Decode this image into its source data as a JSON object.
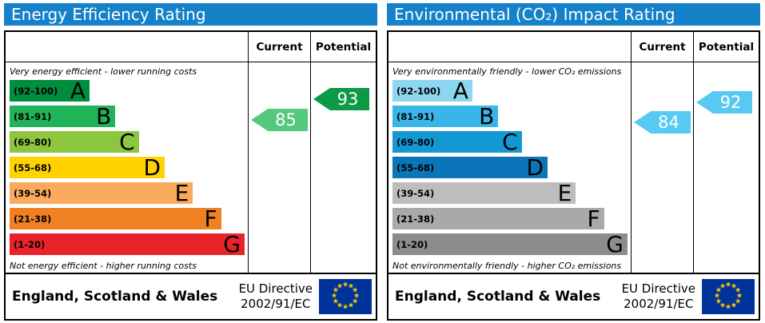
{
  "colors": {
    "header_bg": "#1581c8",
    "header_text": "#ffffff",
    "border": "#000000",
    "flag_bg": "#003399",
    "flag_star": "#ffcc00"
  },
  "icons": {
    "eu_star": "★"
  },
  "panels": [
    {
      "title": "Energy Efficiency Rating",
      "col_current": "Current",
      "col_potential": "Potential",
      "top_note": "Very energy efficient - lower running costs",
      "bottom_note": "Not energy efficient - higher running costs",
      "bands": [
        {
          "range": "(92-100)",
          "letter": "A",
          "color": "#008d3e",
          "width": "34%"
        },
        {
          "range": "(81-91)",
          "letter": "B",
          "color": "#21b358",
          "width": "45%"
        },
        {
          "range": "(69-80)",
          "letter": "C",
          "color": "#8cc63f",
          "width": "55%"
        },
        {
          "range": "(55-68)",
          "letter": "D",
          "color": "#ffd200",
          "width": "66%"
        },
        {
          "range": "(39-54)",
          "letter": "E",
          "color": "#fbaa5d",
          "width": "78%"
        },
        {
          "range": "(21-38)",
          "letter": "F",
          "color": "#f08023",
          "width": "90%"
        },
        {
          "range": "(1-20)",
          "letter": "G",
          "color": "#ea232b",
          "width": "100%"
        }
      ],
      "current": {
        "value": "85",
        "color": "#54c87c"
      },
      "potential": {
        "value": "93",
        "color": "#0d9a46"
      },
      "footer_region": "England, Scotland & Wales",
      "directive_line1": "EU Directive",
      "directive_line2": "2002/91/EC"
    },
    {
      "title": "Environmental (CO₂) Impact Rating",
      "col_current": "Current",
      "col_potential": "Potential",
      "top_note": "Very environmentally friendly - lower CO₂ emissions",
      "bottom_note": "Not environmentally friendly - higher CO₂ emissions",
      "bands": [
        {
          "range": "(92-100)",
          "letter": "A",
          "color": "#8dd6f0",
          "width": "34%"
        },
        {
          "range": "(81-91)",
          "letter": "B",
          "color": "#38b6e8",
          "width": "45%"
        },
        {
          "range": "(69-80)",
          "letter": "C",
          "color": "#1498d4",
          "width": "55%"
        },
        {
          "range": "(55-68)",
          "letter": "D",
          "color": "#0a75b8",
          "width": "66%"
        },
        {
          "range": "(39-54)",
          "letter": "E",
          "color": "#bdbdbd",
          "width": "78%"
        },
        {
          "range": "(21-38)",
          "letter": "F",
          "color": "#a9a9a9",
          "width": "90%"
        },
        {
          "range": "(1-20)",
          "letter": "G",
          "color": "#8c8c8c",
          "width": "100%"
        }
      ],
      "current": {
        "value": "84",
        "color": "#58c9f3"
      },
      "potential": {
        "value": "92",
        "color": "#58c9f3"
      },
      "footer_region": "England, Scotland & Wales",
      "directive_line1": "EU Directive",
      "directive_line2": "2002/91/EC"
    }
  ],
  "chart_data": [
    {
      "type": "bar",
      "title": "Energy Efficiency Rating",
      "categories": [
        "A",
        "B",
        "C",
        "D",
        "E",
        "F",
        "G"
      ],
      "band_ranges": [
        "92-100",
        "81-91",
        "69-80",
        "55-68",
        "39-54",
        "21-38",
        "1-20"
      ],
      "bar_length_pct": [
        34,
        45,
        55,
        66,
        78,
        90,
        100
      ],
      "scale": [
        1,
        100
      ],
      "current": 85,
      "current_band": "B",
      "potential": 93,
      "potential_band": "A",
      "top_note": "Very energy efficient - lower running costs",
      "bottom_note": "Not energy efficient - higher running costs",
      "legend_position": "top",
      "columns": [
        "Current",
        "Potential"
      ],
      "footer": "England, Scotland & Wales",
      "directive": "EU Directive 2002/91/EC"
    },
    {
      "type": "bar",
      "title": "Environmental (CO₂) Impact Rating",
      "categories": [
        "A",
        "B",
        "C",
        "D",
        "E",
        "F",
        "G"
      ],
      "band_ranges": [
        "92-100",
        "81-91",
        "69-80",
        "55-68",
        "39-54",
        "21-38",
        "1-20"
      ],
      "bar_length_pct": [
        34,
        45,
        55,
        66,
        78,
        90,
        100
      ],
      "scale": [
        1,
        100
      ],
      "current": 84,
      "current_band": "B",
      "potential": 92,
      "potential_band": "A",
      "top_note": "Very environmentally friendly - lower CO₂ emissions",
      "bottom_note": "Not environmentally friendly - higher CO₂ emissions",
      "legend_position": "top",
      "columns": [
        "Current",
        "Potential"
      ],
      "footer": "England, Scotland & Wales",
      "directive": "EU Directive 2002/91/EC"
    }
  ]
}
